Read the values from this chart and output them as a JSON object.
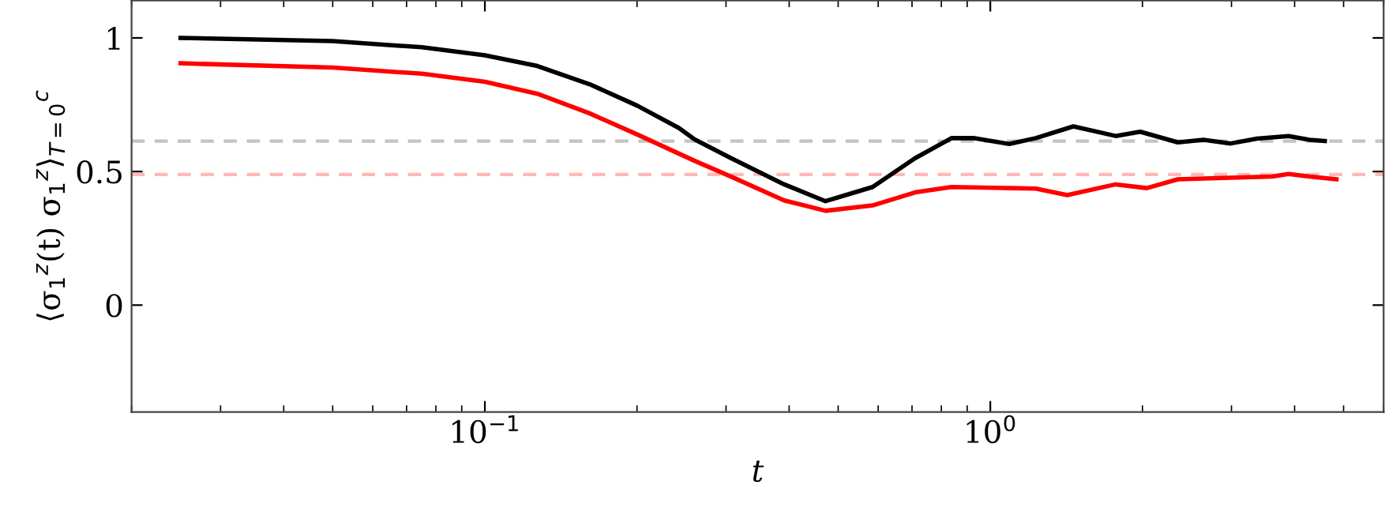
{
  "chart_data": {
    "type": "line",
    "xlabel": "t",
    "ylabel": "⟨σ$_{1}$$^{z}$(t) σ$_{1}$$^{z}$⟩$_{T=0}$$^{c}$",
    "log": "x",
    "xlim": [
      0.02,
      6
    ],
    "ylim": [
      -0.4,
      1.14
    ],
    "xticks": [
      {
        "value": 0.1,
        "label": "10$^{−1}$"
      },
      {
        "value": 1,
        "label": "10$^{0}$"
      }
    ],
    "yticks": [
      0,
      0.5,
      1
    ],
    "grid": false,
    "legend": false,
    "marker": "none",
    "line_style": "solid",
    "series": [
      {
        "color": "#000000",
        "x": [
          0.025,
          0.05,
          0.075,
          0.1,
          0.127,
          0.161,
          0.2,
          0.242,
          0.26,
          0.307,
          0.391,
          0.472,
          0.585,
          0.71,
          0.838,
          0.926,
          1.09,
          1.23,
          1.46,
          1.77,
          1.98,
          2.35,
          2.64,
          2.99,
          3.37,
          3.89,
          4.28,
          4.59
        ],
        "values": [
          1.0,
          0.988,
          0.965,
          0.935,
          0.895,
          0.827,
          0.747,
          0.663,
          0.62,
          0.55,
          0.452,
          0.389,
          0.442,
          0.55,
          0.625,
          0.625,
          0.603,
          0.625,
          0.669,
          0.633,
          0.649,
          0.609,
          0.619,
          0.605,
          0.623,
          0.633,
          0.619,
          0.614
        ]
      },
      {
        "color": "#ff0000",
        "x": [
          0.025,
          0.05,
          0.075,
          0.1,
          0.127,
          0.161,
          0.2,
          0.26,
          0.307,
          0.391,
          0.472,
          0.585,
          0.71,
          0.838,
          1.09,
          1.23,
          1.42,
          1.77,
          2.04,
          2.35,
          2.99,
          3.61,
          3.89,
          4.28,
          4.84
        ],
        "values": [
          0.905,
          0.889,
          0.866,
          0.836,
          0.791,
          0.718,
          0.639,
          0.54,
          0.481,
          0.392,
          0.353,
          0.373,
          0.422,
          0.442,
          0.438,
          0.436,
          0.412,
          0.452,
          0.438,
          0.471,
          0.477,
          0.481,
          0.491,
          0.481,
          0.471
        ]
      }
    ],
    "ref_lines": [
      {
        "axis": "y",
        "value": 0.614,
        "color": "#c4c4c4",
        "line_style": "dashed"
      },
      {
        "axis": "y",
        "value": 0.489,
        "color": "#ffb8b8",
        "line_style": "dashed"
      }
    ]
  }
}
